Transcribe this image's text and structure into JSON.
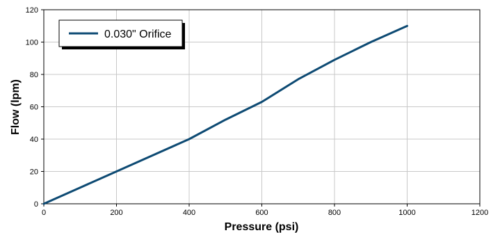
{
  "chart_data": {
    "type": "line",
    "title": "",
    "xlabel": "Pressure (psi)",
    "ylabel": "Flow (lpm)",
    "xlim": [
      0,
      1200
    ],
    "ylim": [
      0,
      120
    ],
    "x_ticks": [
      0,
      200,
      400,
      600,
      800,
      1000,
      1200
    ],
    "y_ticks": [
      0,
      20,
      40,
      60,
      80,
      100,
      120
    ],
    "x_tick_labels": [
      "0",
      "200",
      "400",
      "600",
      "800",
      "1000",
      "1200"
    ],
    "y_tick_labels": [
      "0",
      "20",
      "40",
      "60",
      "80",
      "100",
      "120"
    ],
    "grid": true,
    "legend_position": "top-left",
    "series": [
      {
        "name": "0.030\" Orifice",
        "color": "#0d4a73",
        "x": [
          0,
          100,
          200,
          300,
          400,
          500,
          600,
          700,
          800,
          900,
          1000
        ],
        "y": [
          0,
          10,
          20,
          30,
          40,
          52,
          63,
          77,
          89,
          100,
          110
        ]
      }
    ]
  }
}
